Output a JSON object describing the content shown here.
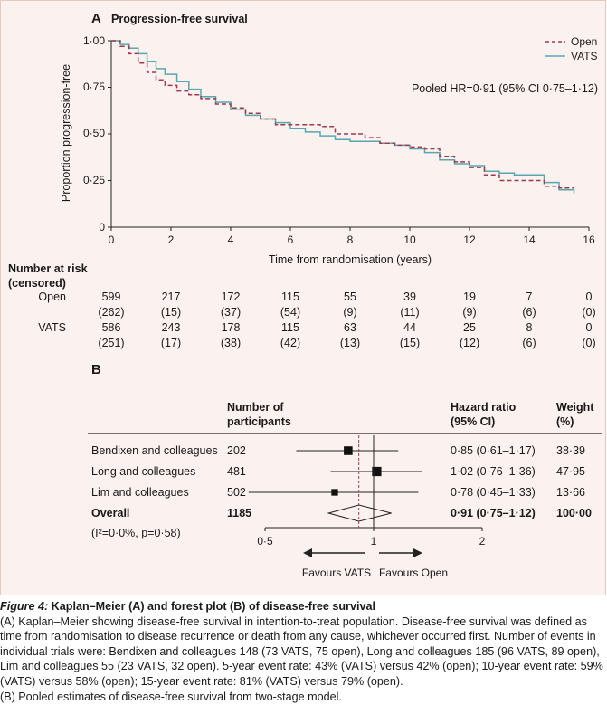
{
  "panel_a": {
    "label": "A",
    "title": "Progression-free survival",
    "ylabel": "Proportion progression-free",
    "xlabel": "Time from randomisation (years)",
    "y_ticks": [
      "1·00",
      "0·75",
      "0·50",
      "0·25",
      "0"
    ],
    "x_ticks": [
      "0",
      "2",
      "4",
      "6",
      "8",
      "10",
      "12",
      "14",
      "16"
    ],
    "legend": {
      "open": "Open",
      "vats": "VATS"
    },
    "hr_text": "Pooled HR=0·91 (95% CI 0·75–1·12)",
    "colors": {
      "open": "#9c3a4e",
      "vats": "#5aa6b0"
    }
  },
  "chart_data": {
    "type": "line",
    "title": "Progression-free survival",
    "xlabel": "Time from randomisation (years)",
    "ylabel": "Proportion progression-free",
    "xlim": [
      0,
      16
    ],
    "ylim": [
      0,
      1
    ],
    "series": [
      {
        "name": "Open",
        "x": [
          0,
          0.3,
          0.6,
          0.9,
          1.2,
          1.5,
          1.8,
          2.2,
          2.6,
          3.0,
          3.5,
          4.0,
          4.5,
          5.0,
          5.5,
          6.0,
          6.5,
          7.0,
          7.5,
          8.0,
          8.5,
          9.0,
          9.5,
          10.0,
          10.5,
          11.0,
          11.5,
          12.0,
          12.5,
          13.0,
          13.5,
          14.0,
          14.5,
          15.0,
          15.5
        ],
        "y": [
          1.0,
          0.97,
          0.93,
          0.88,
          0.83,
          0.79,
          0.76,
          0.73,
          0.71,
          0.69,
          0.66,
          0.64,
          0.61,
          0.58,
          0.55,
          0.55,
          0.55,
          0.54,
          0.5,
          0.5,
          0.48,
          0.45,
          0.44,
          0.43,
          0.42,
          0.38,
          0.35,
          0.32,
          0.28,
          0.25,
          0.25,
          0.25,
          0.22,
          0.21,
          0.21
        ]
      },
      {
        "name": "VATS",
        "x": [
          0,
          0.3,
          0.6,
          0.9,
          1.2,
          1.5,
          1.8,
          2.2,
          2.6,
          3.0,
          3.5,
          4.0,
          4.5,
          5.0,
          5.5,
          6.0,
          6.5,
          7.0,
          7.5,
          8.0,
          8.5,
          9.0,
          9.5,
          10.0,
          10.5,
          11.0,
          11.5,
          12.0,
          12.5,
          13.0,
          13.5,
          14.0,
          14.5,
          15.0,
          15.5
        ],
        "y": [
          1.0,
          0.98,
          0.96,
          0.93,
          0.89,
          0.85,
          0.82,
          0.78,
          0.74,
          0.7,
          0.67,
          0.63,
          0.6,
          0.58,
          0.56,
          0.53,
          0.51,
          0.49,
          0.47,
          0.46,
          0.46,
          0.45,
          0.44,
          0.42,
          0.4,
          0.36,
          0.34,
          0.33,
          0.3,
          0.29,
          0.28,
          0.28,
          0.24,
          0.2,
          0.18
        ]
      }
    ]
  },
  "risk_table": {
    "header1": "Number at risk",
    "header2": "(censored)",
    "rows": [
      {
        "label": "Open",
        "n": [
          "599",
          "217",
          "172",
          "115",
          "55",
          "39",
          "19",
          "7",
          "0"
        ],
        "c": [
          "(262)",
          "(15)",
          "(37)",
          "(54)",
          "(9)",
          "(11)",
          "(9)",
          "(6)",
          "(0)"
        ]
      },
      {
        "label": "VATS",
        "n": [
          "586",
          "243",
          "178",
          "115",
          "63",
          "44",
          "25",
          "8",
          "0"
        ],
        "c": [
          "(251)",
          "(17)",
          "(38)",
          "(42)",
          "(13)",
          "(15)",
          "(12)",
          "(6)",
          "(0)"
        ]
      }
    ]
  },
  "panel_b": {
    "label": "B",
    "col_participants_1": "Number of",
    "col_participants_2": "participants",
    "col_hr_1": "Hazard ratio",
    "col_hr_2": "(95% CI)",
    "col_weight_1": "Weight",
    "col_weight_2": "(%)",
    "studies": [
      {
        "name": "Bendixen and colleagues",
        "n": "202",
        "hr_text": "0·85 (0·61–1·17)",
        "weight": "38·39",
        "hr": 0.85,
        "lo": 0.61,
        "hi": 1.17,
        "w": 38.39
      },
      {
        "name": "Long and colleagues",
        "n": "481",
        "hr_text": "1·02 (0·76–1·36)",
        "weight": "47·95",
        "hr": 1.02,
        "lo": 0.76,
        "hi": 1.36,
        "w": 47.95
      },
      {
        "name": "Lim and colleagues",
        "n": "502",
        "hr_text": "0·78 (0·45–1·33)",
        "weight": "13·66",
        "hr": 0.78,
        "lo": 0.45,
        "hi": 1.33,
        "w": 13.66
      }
    ],
    "overall": {
      "name": "Overall",
      "n": "1185",
      "hr_text": "0·91 (0·75–1·12)",
      "weight": "100·00",
      "hr": 0.91,
      "lo": 0.75,
      "hi": 1.12
    },
    "heterogeneity": "(I²=0·0%, p=0·58)",
    "x_ticks": [
      "0·5",
      "1",
      "2"
    ],
    "favours_left": "Favours VATS",
    "favours_right": "Favours Open"
  },
  "caption": {
    "label": "Figure 4:",
    "title": " Kaplan–Meier (A) and forest plot (B) of disease-free survival",
    "body": "(A) Kaplan–Meier showing disease-free survival in intention-to-treat population. Disease-free survival was defined as time from randomisation to disease recurrence or death from any cause, whichever occurred first. Number of events in individual trials were: Bendixen and colleagues 148 (73 VATS, 75 open), Long and colleagues 185 (96 VATS, 89 open), Lim and colleagues 55 (23 VATS, 32 open). 5-year event rate: 43% (VATS) versus 42% (open); 10-year event rate: 59% (VATS) versus 58% (open); 15-year event rate: 81% (VATS) versus 79% (open).",
    "body2": "(B) Pooled estimates of disease-free survival from two-stage model."
  }
}
